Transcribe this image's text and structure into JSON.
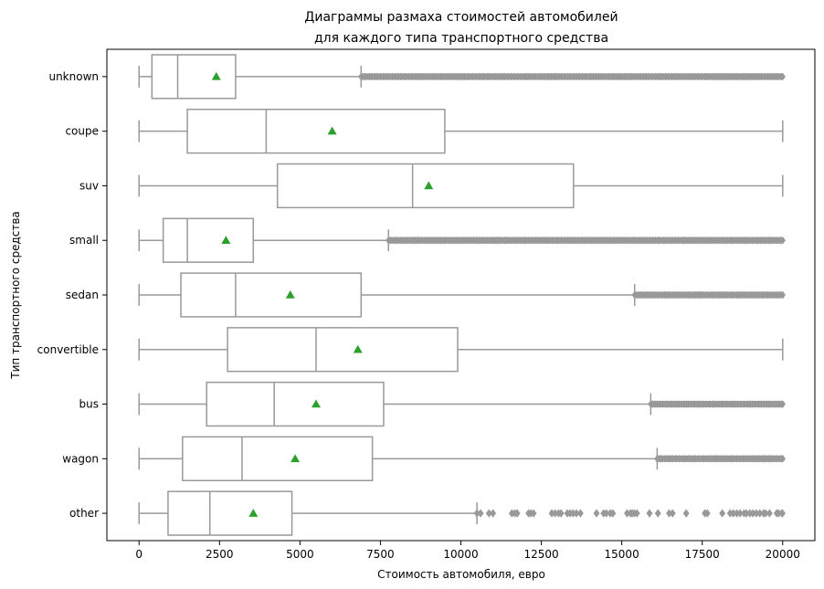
{
  "chart_data": {
    "type": "boxplot",
    "orientation": "horizontal",
    "title_lines": [
      "Диаграммы размаха стоимостей автомобилей",
      "для каждого типа транспортного средства"
    ],
    "xlabel": "Стоимость автомобиля, евро",
    "ylabel": "Тип транспортного средства",
    "xlim": [
      -1000,
      21000
    ],
    "xticks": [
      0,
      2500,
      5000,
      7500,
      10000,
      12500,
      15000,
      17500,
      20000
    ],
    "xtick_labels": [
      "0",
      "2500",
      "5000",
      "7500",
      "10000",
      "12500",
      "15000",
      "17500",
      "20000"
    ],
    "grid": false,
    "legend": "none",
    "colors": {
      "box": "#999999",
      "box_fill": "#ffffff",
      "mean_marker": "#2ca02c",
      "outlier": "#999999"
    },
    "categories": [
      "unknown",
      "coupe",
      "suv",
      "small",
      "sedan",
      "convertible",
      "bus",
      "wagon",
      "other"
    ],
    "boxes": [
      {
        "category": "unknown",
        "whisker_low": 0,
        "q1": 400,
        "median": 1200,
        "q3": 3000,
        "whisker_high": 6900,
        "mean": 2400,
        "outliers_from": 6900,
        "outliers_to": 20000,
        "outliers_density": "dense"
      },
      {
        "category": "coupe",
        "whisker_low": 0,
        "q1": 1500,
        "median": 3950,
        "q3": 9500,
        "whisker_high": 20000,
        "mean": 6000,
        "outliers_from": null,
        "outliers_to": null,
        "outliers_density": "none"
      },
      {
        "category": "suv",
        "whisker_low": 0,
        "q1": 4300,
        "median": 8500,
        "q3": 13500,
        "whisker_high": 20000,
        "mean": 9000,
        "outliers_from": null,
        "outliers_to": null,
        "outliers_density": "none"
      },
      {
        "category": "small",
        "whisker_low": 0,
        "q1": 750,
        "median": 1500,
        "q3": 3550,
        "whisker_high": 7750,
        "mean": 2700,
        "outliers_from": 7750,
        "outliers_to": 20000,
        "outliers_density": "dense"
      },
      {
        "category": "sedan",
        "whisker_low": 0,
        "q1": 1300,
        "median": 3000,
        "q3": 6900,
        "whisker_high": 15400,
        "mean": 4700,
        "outliers_from": 15400,
        "outliers_to": 20000,
        "outliers_density": "dense"
      },
      {
        "category": "convertible",
        "whisker_low": 0,
        "q1": 2750,
        "median": 5500,
        "q3": 9900,
        "whisker_high": 20000,
        "mean": 6800,
        "outliers_from": null,
        "outliers_to": null,
        "outliers_density": "none"
      },
      {
        "category": "bus",
        "whisker_low": 0,
        "q1": 2100,
        "median": 4200,
        "q3": 7600,
        "whisker_high": 15900,
        "mean": 5500,
        "outliers_from": 15900,
        "outliers_to": 20000,
        "outliers_density": "dense"
      },
      {
        "category": "wagon",
        "whisker_low": 0,
        "q1": 1350,
        "median": 3200,
        "q3": 7250,
        "whisker_high": 16100,
        "mean": 4850,
        "outliers_from": 16100,
        "outliers_to": 20000,
        "outliers_density": "dense"
      },
      {
        "category": "other",
        "whisker_low": 0,
        "q1": 900,
        "median": 2200,
        "q3": 4750,
        "whisker_high": 10500,
        "mean": 3550,
        "outliers_from": 10500,
        "outliers_to": 20000,
        "outliers_density": "sparse"
      }
    ]
  }
}
